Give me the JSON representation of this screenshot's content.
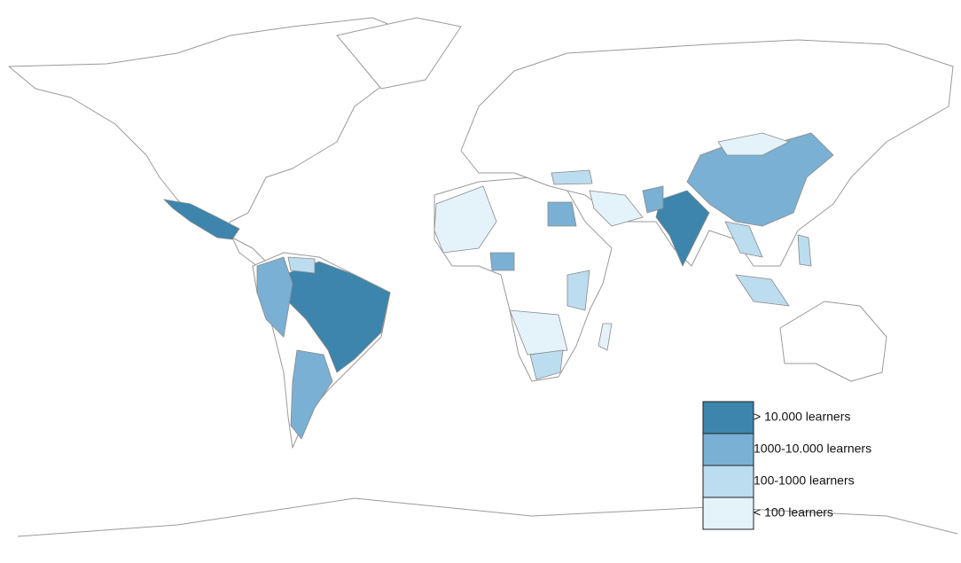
{
  "legend": {
    "items": [
      {
        "label": "> 10.000 learners",
        "color": "#3d85ad"
      },
      {
        "label": "1000-10.000 learners",
        "color": "#7ab0d4"
      },
      {
        "label": "100-1000 learners",
        "color": "#bcdcef"
      },
      {
        "label": "< 100 learners",
        "color": "#e4f2fa"
      }
    ]
  }
}
